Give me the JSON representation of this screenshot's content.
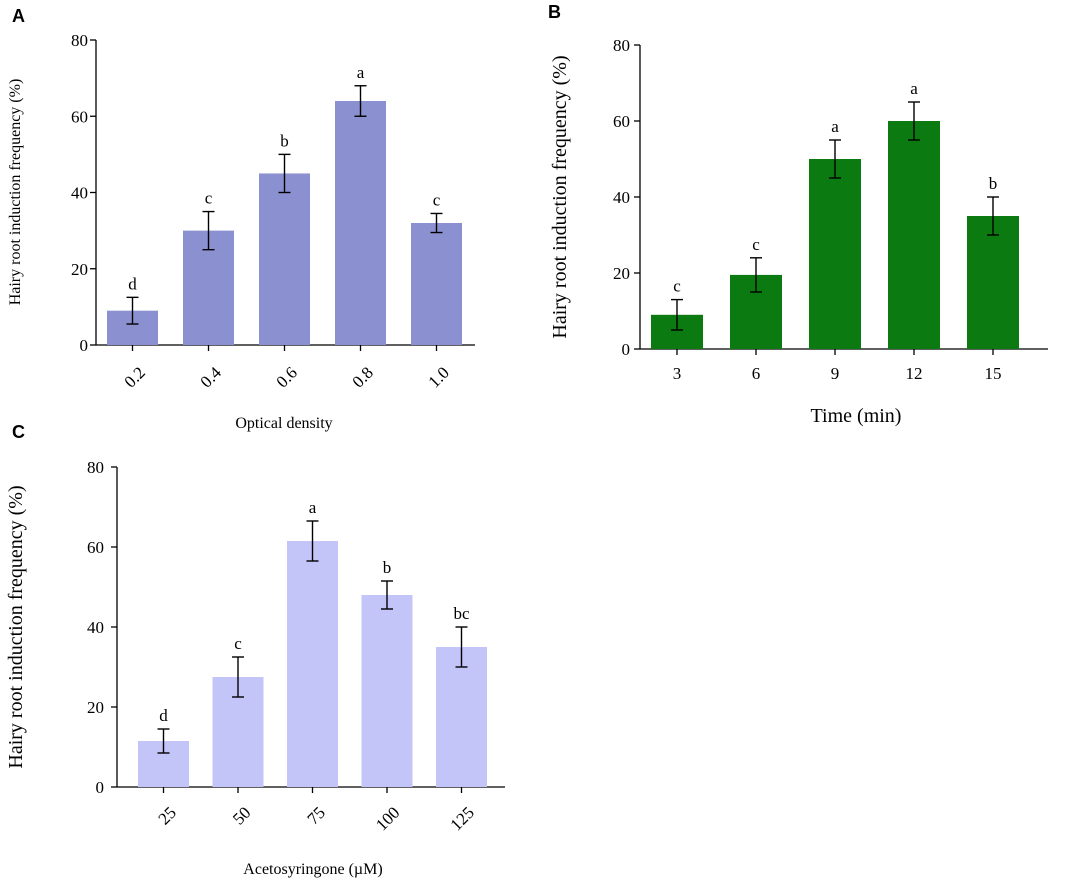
{
  "chart_data": [
    {
      "panel": "A",
      "type": "bar",
      "color": "#8b91d0",
      "categories": [
        "0.2",
        "0.4",
        "0.6",
        "0.8",
        "1.0"
      ],
      "values": [
        9,
        30,
        45,
        64,
        32
      ],
      "errors": [
        3.5,
        5,
        5,
        4,
        2.5
      ],
      "significance": [
        "d",
        "c",
        "b",
        "a",
        "c"
      ],
      "xlabel": "Optical density",
      "ylabel": "Hairy root induction frequency (%)",
      "ylim": [
        0,
        80
      ],
      "yticks": [
        "0",
        "20",
        "40",
        "60",
        "80"
      ]
    },
    {
      "panel": "B",
      "type": "bar",
      "color": "#0b7a10",
      "categories": [
        "3",
        "6",
        "9",
        "12",
        "15"
      ],
      "values": [
        9,
        19.5,
        50,
        60,
        35
      ],
      "errors": [
        4,
        4.5,
        5,
        5,
        5
      ],
      "significance": [
        "c",
        "c",
        "a",
        "a",
        "b"
      ],
      "xlabel": "Time (min)",
      "ylabel": "Hairy root induction frequency (%)",
      "ylim": [
        0,
        80
      ],
      "yticks": [
        "0",
        "20",
        "40",
        "60",
        "80"
      ]
    },
    {
      "panel": "C",
      "type": "bar",
      "color": "#c3c4f8",
      "categories": [
        "25",
        "50",
        "75",
        "100",
        "125"
      ],
      "values": [
        11.5,
        27.5,
        61.5,
        48,
        35
      ],
      "errors": [
        3,
        5,
        5,
        3.5,
        5
      ],
      "significance": [
        "d",
        "c",
        "a",
        "b",
        "bc"
      ],
      "xlabel": "Acetosyringone (µM)",
      "ylabel": "Hairy root induction frequency (%)",
      "ylim": [
        0,
        80
      ],
      "yticks": [
        "0",
        "20",
        "40",
        "60",
        "80"
      ]
    }
  ]
}
